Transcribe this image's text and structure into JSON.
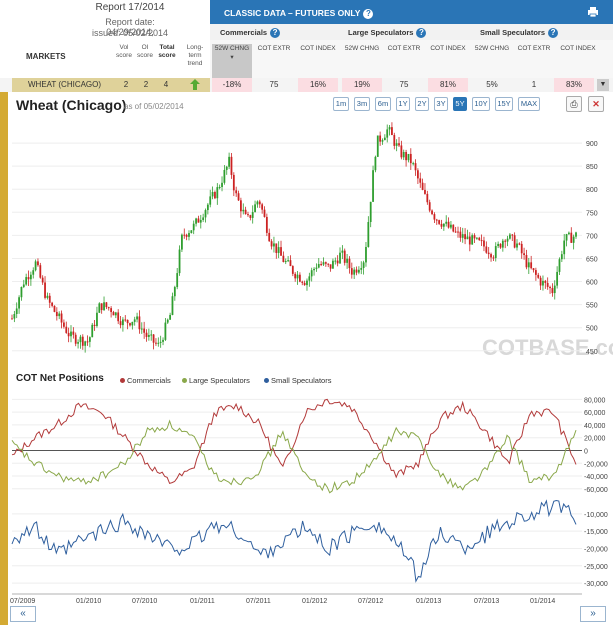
{
  "report": {
    "title": "Report 17/2014",
    "date": "Report date: 04/29/2014,",
    "issued": "issued: 05/02/2014"
  },
  "markets_label": "MARKETS",
  "score_headers": [
    "Vol score",
    "OI score",
    "Total score",
    "Long-term trend"
  ],
  "banner": {
    "title": "CLASSIC DATA – FUTURES ONLY"
  },
  "groups": [
    "Commercials",
    "Large Speculators",
    "Small Speculators"
  ],
  "col_headers": [
    "52W CHNG",
    "COT EXTR",
    "COT INDEX",
    "52W CHNG",
    "COT EXTR",
    "COT INDEX",
    "52W CHNG",
    "COT EXTR",
    "COT INDEX"
  ],
  "row": {
    "market": "WHEAT (CHICAGO)",
    "vol": "2",
    "oi": "2",
    "total": "4",
    "cells": [
      "-18%",
      "75",
      "16%",
      "19%",
      "75",
      "81%",
      "5%",
      "1",
      "83%"
    ]
  },
  "chart": {
    "title": "Wheat (Chicago)",
    "asof": "as of 05/02/2014",
    "watermark": "COTBASE.com",
    "ranges": [
      "1m",
      "3m",
      "6m",
      "1Y",
      "2Y",
      "3Y",
      "5Y",
      "10Y",
      "15Y",
      "MAX"
    ],
    "selected": "5Y"
  },
  "cot": {
    "title": "COT Net Positions",
    "legend": [
      "Commercials",
      "Large Speculators",
      "Small Speculators"
    ]
  },
  "colors": {
    "commercials": "#b23a3a",
    "large": "#8aa84a",
    "small": "#2f5f9e",
    "up": "#2f9e2f",
    "down": "#cc2222"
  },
  "chart_data": [
    {
      "type": "candlestick",
      "title": "Wheat (Chicago)",
      "x_ticks": [
        "07/2009",
        "01/2010",
        "07/2010",
        "01/2011",
        "07/2011",
        "01/2012",
        "07/2012",
        "01/2013",
        "07/2013",
        "01/2014"
      ],
      "y_ticks": [
        450,
        500,
        550,
        600,
        650,
        700,
        750,
        800,
        850,
        900
      ],
      "ylim": [
        430,
        950
      ],
      "close_path": [
        [
          0,
          520
        ],
        [
          4,
          600
        ],
        [
          8,
          640
        ],
        [
          12,
          560
        ],
        [
          16,
          520
        ],
        [
          20,
          480
        ],
        [
          26,
          470
        ],
        [
          30,
          550
        ],
        [
          34,
          540
        ],
        [
          38,
          510
        ],
        [
          42,
          520
        ],
        [
          46,
          480
        ],
        [
          50,
          460
        ],
        [
          54,
          530
        ],
        [
          58,
          700
        ],
        [
          62,
          720
        ],
        [
          66,
          760
        ],
        [
          70,
          800
        ],
        [
          74,
          860
        ],
        [
          76,
          790
        ],
        [
          80,
          730
        ],
        [
          84,
          780
        ],
        [
          88,
          690
        ],
        [
          92,
          650
        ],
        [
          96,
          620
        ],
        [
          100,
          600
        ],
        [
          104,
          640
        ],
        [
          108,
          630
        ],
        [
          112,
          660
        ],
        [
          116,
          620
        ],
        [
          120,
          650
        ],
        [
          124,
          900
        ],
        [
          128,
          930
        ],
        [
          132,
          880
        ],
        [
          136,
          860
        ],
        [
          140,
          790
        ],
        [
          144,
          740
        ],
        [
          148,
          720
        ],
        [
          152,
          700
        ],
        [
          156,
          690
        ],
        [
          160,
          680
        ],
        [
          164,
          660
        ],
        [
          168,
          700
        ],
        [
          172,
          680
        ],
        [
          176,
          630
        ],
        [
          180,
          600
        ],
        [
          184,
          580
        ],
        [
          188,
          690
        ],
        [
          192,
          700
        ]
      ]
    },
    {
      "type": "line",
      "title": "COT Net Positions",
      "y_ticks": [
        80000,
        60000,
        40000,
        20000,
        0,
        -20000,
        -40000,
        -60000
      ],
      "ylim": [
        -65000,
        90000
      ],
      "series": [
        {
          "name": "Commercials",
          "values": [
            -10000,
            20000,
            40000,
            70000,
            60000,
            20000,
            -20000,
            -50000,
            -30000,
            60000,
            70000,
            40000,
            -30000,
            60000,
            80000,
            70000,
            20000,
            -40000,
            -20000,
            50000,
            70000,
            30000,
            -20000,
            60000,
            60000,
            -20000
          ]
        },
        {
          "name": "Large Speculators",
          "values": [
            10000,
            -20000,
            -40000,
            -50000,
            -40000,
            -20000,
            30000,
            40000,
            20000,
            -40000,
            -50000,
            -30000,
            30000,
            -40000,
            -60000,
            -50000,
            -20000,
            30000,
            20000,
            -40000,
            -60000,
            -30000,
            20000,
            -50000,
            -40000,
            30000
          ]
        },
        {
          "name": "Small Speculators",
          "values": [
            -17000,
            -14000,
            -22000,
            -18000,
            -15000,
            -12000,
            -16000,
            -20000,
            -19000,
            -13000,
            -15000,
            -22000,
            -18000,
            -14000,
            -20000,
            -16000,
            -12000,
            -18000,
            -28000,
            -15000,
            -20000,
            -16000,
            -12000,
            -10000,
            -8000,
            -11000
          ]
        }
      ]
    }
  ]
}
